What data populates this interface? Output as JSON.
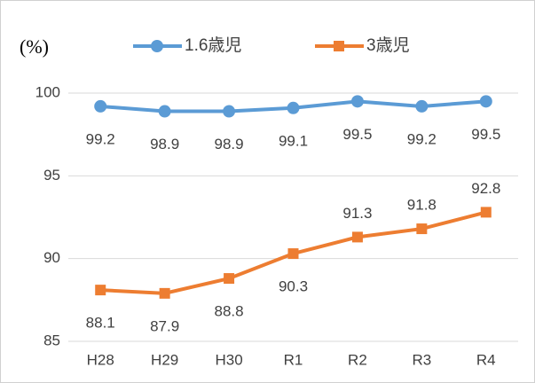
{
  "chart_data": {
    "type": "line",
    "y_unit_label": "(%)",
    "categories": [
      "H28",
      "H29",
      "H30",
      "R1",
      "R2",
      "R3",
      "R4"
    ],
    "series": [
      {
        "name": "1.6歳児",
        "color": "#5b9bd5",
        "marker": "circle",
        "values": [
          99.2,
          98.9,
          98.9,
          99.1,
          99.5,
          99.2,
          99.5
        ]
      },
      {
        "name": "3歳児",
        "color": "#ed7d31",
        "marker": "square",
        "values": [
          88.1,
          87.9,
          88.8,
          90.3,
          91.3,
          91.8,
          92.8
        ]
      }
    ],
    "ylim": [
      85,
      100
    ],
    "yticks": [
      85,
      90,
      95,
      100
    ],
    "grid": true
  }
}
